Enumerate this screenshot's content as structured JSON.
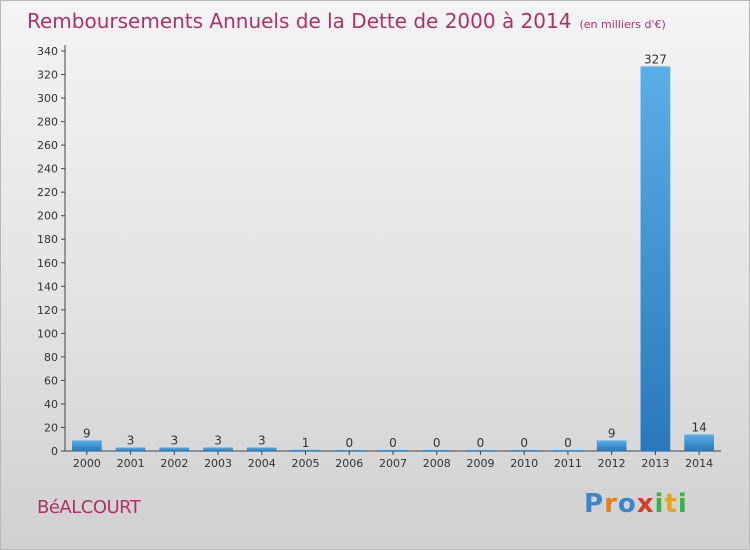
{
  "header": {
    "title": "Remboursements Annuels de la Dette de 2000 à 2014",
    "unit": "(en milliers d'€)"
  },
  "footer": {
    "place": "BéALCOURT",
    "logo": [
      "P",
      "r",
      "o",
      "x",
      "i",
      "t",
      "i"
    ]
  },
  "colors": {
    "title": "#b0306a",
    "bar_light": "#5aaee8",
    "bar_dark": "#2a78b8",
    "logo": [
      "#3a86c8",
      "#e8801a",
      "#3a86c8",
      "#d83a2a",
      "#3ab04a",
      "#e8a41a",
      "#3ab04a"
    ]
  },
  "chart_data": {
    "type": "bar",
    "title": "Remboursements Annuels de la Dette de 2000 à 2014",
    "categories": [
      "2000",
      "2001",
      "2002",
      "2003",
      "2004",
      "2005",
      "2006",
      "2007",
      "2008",
      "2009",
      "2010",
      "2011",
      "2012",
      "2013",
      "2014"
    ],
    "values": [
      9,
      3,
      3,
      3,
      3,
      1,
      0,
      0,
      0,
      0,
      0,
      0,
      9,
      327,
      14
    ],
    "ylim": [
      0,
      340
    ],
    "yticks": [
      0,
      20,
      40,
      60,
      80,
      100,
      120,
      140,
      160,
      180,
      200,
      220,
      240,
      260,
      280,
      300,
      320,
      340
    ],
    "grid": false,
    "legend": "none"
  }
}
